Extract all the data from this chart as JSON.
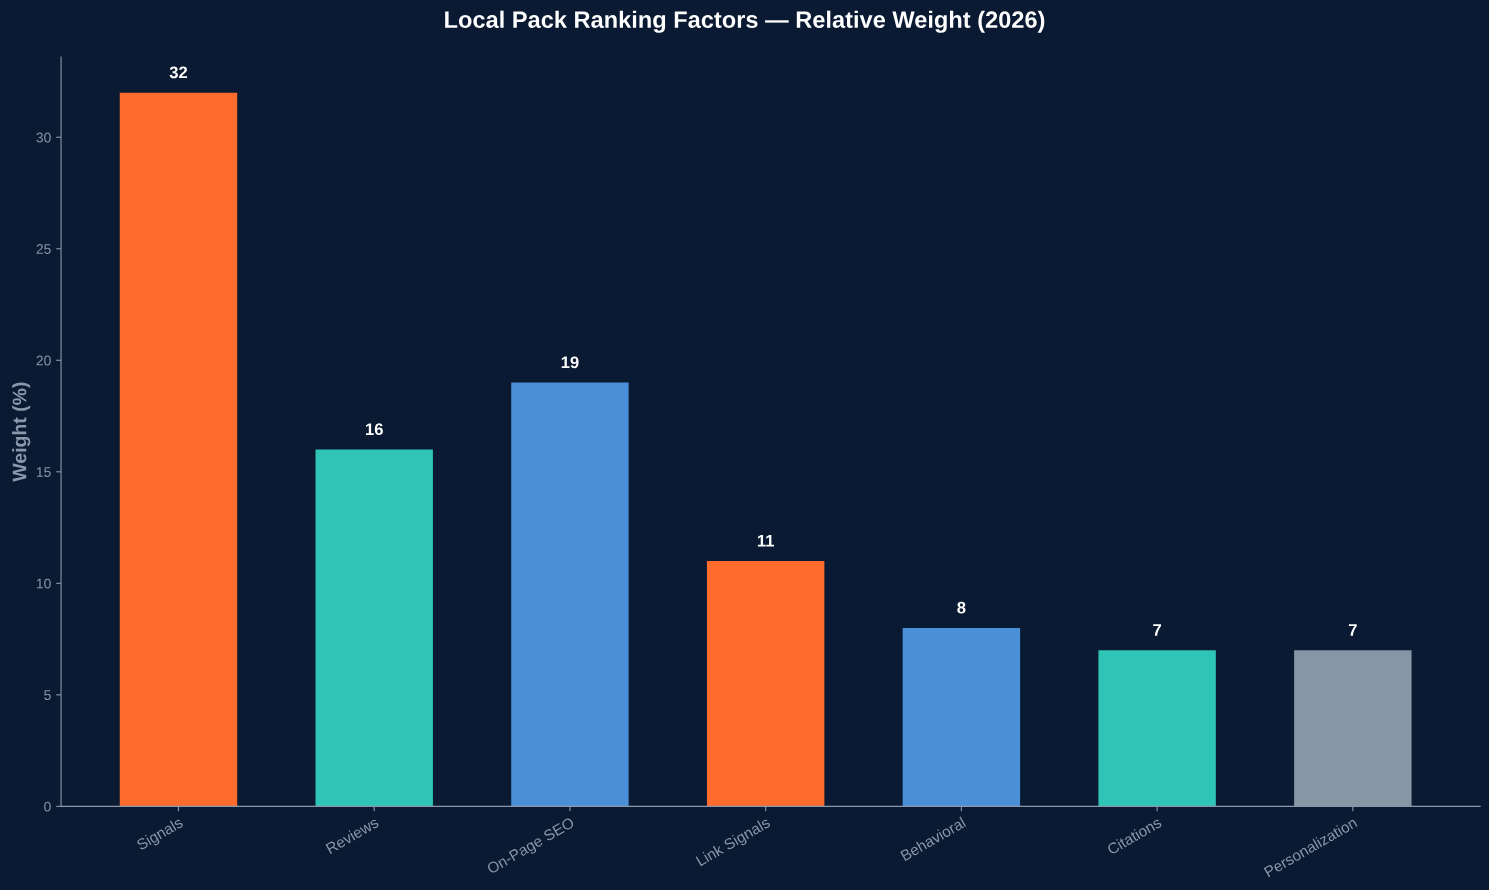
{
  "chart_data": {
    "type": "bar",
    "title": "Local Pack Ranking Factors — Relative Weight (2026)",
    "ylabel": "Weight (%)",
    "categories": [
      "Signals",
      "Reviews",
      "On-Page SEO",
      "Link Signals",
      "Behavioral",
      "Citations",
      "Personalization"
    ],
    "values": [
      32,
      16,
      19,
      11,
      8,
      7,
      7
    ],
    "colors": [
      "#ff6b2c",
      "#2ec4b6",
      "#4a90d9",
      "#ff6b2c",
      "#4a90d9",
      "#2ec4b6",
      "#8796a5"
    ],
    "ylim": [
      0,
      33.6
    ],
    "yticks": [
      0,
      5,
      10,
      15,
      20,
      25,
      30
    ],
    "data_labels": true,
    "grid": false
  }
}
